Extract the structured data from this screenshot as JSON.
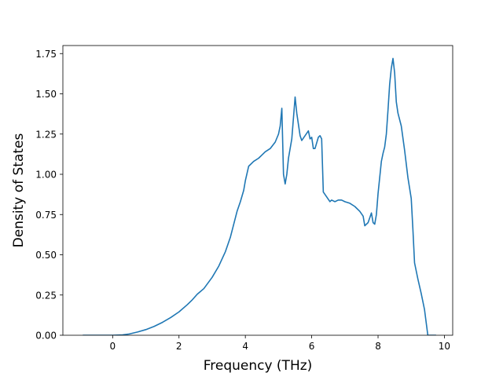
{
  "chart_data": {
    "type": "line",
    "title": "",
    "xlabel": "Frequency (THz)",
    "ylabel": "Density of States",
    "xlim": [
      -1.5,
      10.25
    ],
    "ylim": [
      0,
      1.8
    ],
    "xticks": [
      0,
      2,
      4,
      6,
      8,
      10
    ],
    "xtick_labels": [
      "0",
      "2",
      "4",
      "6",
      "8",
      "10"
    ],
    "yticks": [
      0,
      0.25,
      0.5,
      0.75,
      1.0,
      1.25,
      1.5,
      1.75
    ],
    "ytick_labels": [
      "0.00",
      "0.25",
      "0.50",
      "0.75",
      "1.00",
      "1.25",
      "1.50",
      "1.75"
    ],
    "grid": false,
    "legend": "none",
    "series": [
      {
        "color": "#1f77b4",
        "points": [
          [
            -0.9,
            0.0
          ],
          [
            0.0,
            0.0
          ],
          [
            0.3,
            0.002
          ],
          [
            0.5,
            0.008
          ],
          [
            0.75,
            0.02
          ],
          [
            1.0,
            0.035
          ],
          [
            1.25,
            0.055
          ],
          [
            1.5,
            0.08
          ],
          [
            1.75,
            0.11
          ],
          [
            2.0,
            0.145
          ],
          [
            2.25,
            0.19
          ],
          [
            2.4,
            0.22
          ],
          [
            2.55,
            0.255
          ],
          [
            2.75,
            0.29
          ],
          [
            3.0,
            0.36
          ],
          [
            3.2,
            0.43
          ],
          [
            3.4,
            0.52
          ],
          [
            3.55,
            0.61
          ],
          [
            3.65,
            0.69
          ],
          [
            3.75,
            0.77
          ],
          [
            3.85,
            0.83
          ],
          [
            3.95,
            0.9
          ],
          [
            4.0,
            0.96
          ],
          [
            4.1,
            1.05
          ],
          [
            4.25,
            1.08
          ],
          [
            4.4,
            1.1
          ],
          [
            4.5,
            1.12
          ],
          [
            4.6,
            1.14
          ],
          [
            4.75,
            1.16
          ],
          [
            4.9,
            1.2
          ],
          [
            5.0,
            1.25
          ],
          [
            5.05,
            1.3
          ],
          [
            5.1,
            1.41
          ],
          [
            5.15,
            1.0
          ],
          [
            5.2,
            0.94
          ],
          [
            5.25,
            1.0
          ],
          [
            5.3,
            1.1
          ],
          [
            5.4,
            1.22
          ],
          [
            5.5,
            1.48
          ],
          [
            5.55,
            1.38
          ],
          [
            5.65,
            1.24
          ],
          [
            5.7,
            1.21
          ],
          [
            5.8,
            1.24
          ],
          [
            5.9,
            1.27
          ],
          [
            5.95,
            1.22
          ],
          [
            6.0,
            1.23
          ],
          [
            6.05,
            1.16
          ],
          [
            6.1,
            1.16
          ],
          [
            6.2,
            1.23
          ],
          [
            6.25,
            1.24
          ],
          [
            6.3,
            1.22
          ],
          [
            6.35,
            0.89
          ],
          [
            6.45,
            0.86
          ],
          [
            6.55,
            0.83
          ],
          [
            6.6,
            0.84
          ],
          [
            6.7,
            0.83
          ],
          [
            6.8,
            0.84
          ],
          [
            6.9,
            0.84
          ],
          [
            7.0,
            0.83
          ],
          [
            7.15,
            0.82
          ],
          [
            7.3,
            0.8
          ],
          [
            7.45,
            0.77
          ],
          [
            7.55,
            0.74
          ],
          [
            7.6,
            0.68
          ],
          [
            7.7,
            0.7
          ],
          [
            7.8,
            0.76
          ],
          [
            7.85,
            0.7
          ],
          [
            7.9,
            0.69
          ],
          [
            7.95,
            0.75
          ],
          [
            8.0,
            0.88
          ],
          [
            8.05,
            0.98
          ],
          [
            8.1,
            1.08
          ],
          [
            8.15,
            1.13
          ],
          [
            8.2,
            1.17
          ],
          [
            8.25,
            1.25
          ],
          [
            8.3,
            1.4
          ],
          [
            8.35,
            1.56
          ],
          [
            8.4,
            1.66
          ],
          [
            8.45,
            1.72
          ],
          [
            8.5,
            1.63
          ],
          [
            8.55,
            1.45
          ],
          [
            8.6,
            1.38
          ],
          [
            8.7,
            1.3
          ],
          [
            8.8,
            1.15
          ],
          [
            8.9,
            0.98
          ],
          [
            9.0,
            0.85
          ],
          [
            9.05,
            0.66
          ],
          [
            9.1,
            0.45
          ],
          [
            9.2,
            0.35
          ],
          [
            9.3,
            0.26
          ],
          [
            9.4,
            0.16
          ],
          [
            9.5,
            0.0
          ],
          [
            9.75,
            0.0
          ]
        ]
      }
    ]
  }
}
